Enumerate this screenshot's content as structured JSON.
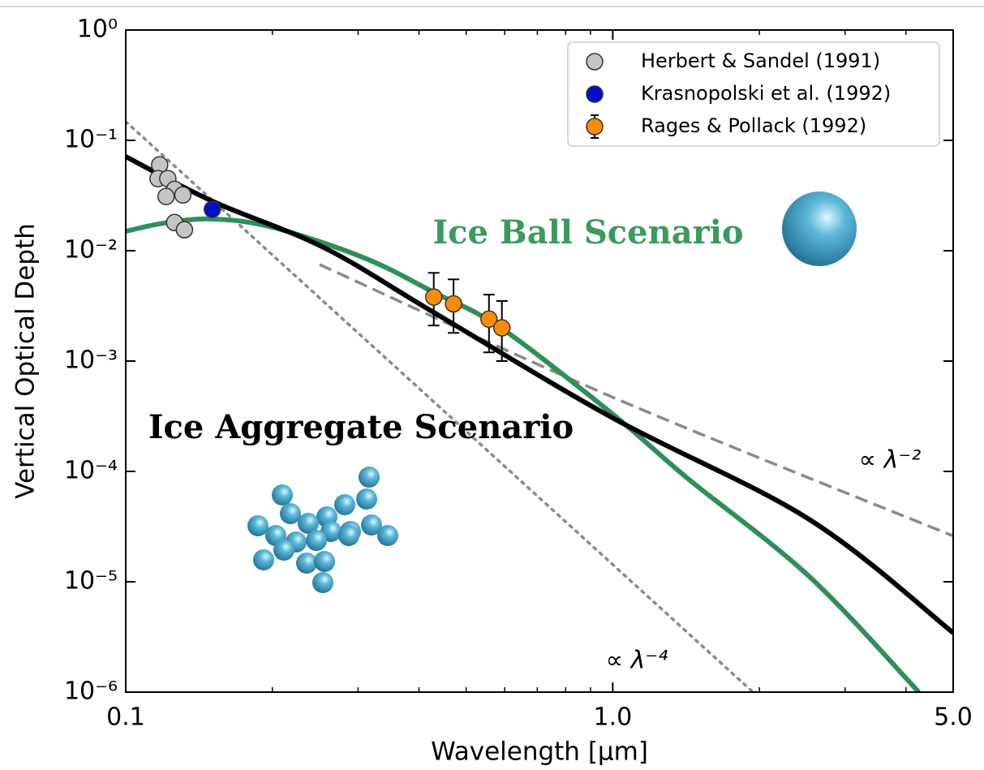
{
  "chart_data": {
    "type": "scatter",
    "xlabel": "Wavelength [μm]",
    "ylabel": "Vertical Optical Depth",
    "xscale": "log",
    "yscale": "log",
    "xlim": [
      0.1,
      5
    ],
    "ylim": [
      1e-06,
      1
    ],
    "xticks": [
      0.1,
      {
        "value": 1,
        "label": "1.0"
      },
      {
        "value": 5,
        "label": "5.0"
      }
    ],
    "xminorticks": [
      0.2,
      0.3,
      0.4,
      0.5,
      0.6,
      0.7,
      0.8,
      0.9,
      2,
      3,
      4
    ],
    "yticks": [
      {
        "value": 1,
        "label": "10⁰"
      },
      {
        "value": 0.1,
        "label": "10⁻¹"
      },
      {
        "value": 0.01,
        "label": "10⁻²"
      },
      {
        "value": 0.001,
        "label": "10⁻³"
      },
      {
        "value": 0.0001,
        "label": "10⁻⁴"
      },
      {
        "value": 1e-05,
        "label": "10⁻⁵"
      },
      {
        "value": 1e-06,
        "label": "10⁻⁶"
      }
    ],
    "legend": "upper right",
    "series": [
      {
        "name": "Herbert & Sandel (1991)",
        "color": "#c4c4c4",
        "x": [
          0.1174,
          0.1165,
          0.122,
          0.126,
          0.131,
          0.121,
          0.126,
          0.132
        ],
        "values": [
          0.06,
          0.045,
          0.045,
          0.036,
          0.032,
          0.031,
          0.018,
          0.0155
        ]
      },
      {
        "name": "Krasnopolski et al. (1992)",
        "color": "#0010c8",
        "x": [
          0.1506
        ],
        "values": [
          0.0237
        ]
      },
      {
        "name": "Rages & Pollack (1992)",
        "color": "#ff8c00",
        "x": [
          0.429,
          0.471,
          0.557,
          0.592
        ],
        "values": [
          0.0038,
          0.0033,
          0.0024,
          0.002
        ],
        "err_low": [
          0.0017,
          0.0015,
          0.0012,
          0.001
        ],
        "err_high": [
          0.0025,
          0.0022,
          0.0016,
          0.0015
        ]
      }
    ],
    "lines": [
      {
        "name": "Ice Aggregate Scenario",
        "color": "#000000",
        "style": "solid",
        "x": [
          0.1,
          0.1506,
          0.255,
          0.429,
          1,
          2.53,
          5
        ],
        "values": [
          0.0713,
          0.0281,
          0.0107,
          0.00276,
          0.000305,
          3.68e-05,
          3.45e-06
        ]
      },
      {
        "name": "Ice Ball Scenario",
        "color": "#2f8f5a",
        "style": "solid",
        "x": [
          0.1,
          0.12,
          0.1506,
          0.2,
          0.309,
          0.429,
          0.592,
          1,
          1.427,
          2.53,
          4.25
        ],
        "values": [
          0.015,
          0.0178,
          0.0194,
          0.0163,
          0.0086,
          0.0042,
          0.00197,
          0.00033,
          8.6e-05,
          1.12e-05,
          1e-06
        ]
      },
      {
        "name": "∝ λ⁻²",
        "color": "#8a8a8a",
        "style": "dashed",
        "x": [
          0.25,
          1,
          5
        ],
        "values": [
          0.0075,
          0.00047,
          2.6e-05
        ]
      },
      {
        "name": "∝ λ⁻⁴",
        "color": "#8a8a8a",
        "style": "dotted",
        "x": [
          0.1,
          1.94
        ],
        "values": [
          0.148,
          1e-06
        ]
      }
    ]
  }
}
